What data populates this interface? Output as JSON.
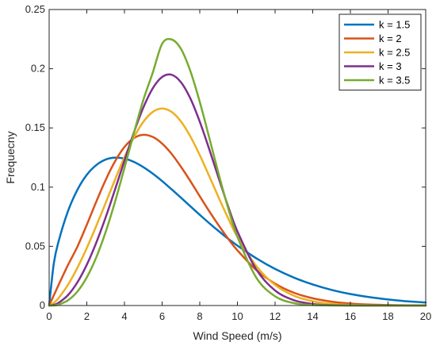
{
  "chart_data": {
    "type": "line",
    "xlabel": "Wind Speed (m/s)",
    "ylabel": "Frequecny",
    "xlim": [
      0,
      20
    ],
    "ylim": [
      0,
      0.25
    ],
    "x_ticks": [
      0,
      2,
      4,
      6,
      8,
      10,
      12,
      14,
      16,
      18,
      20
    ],
    "y_ticks": [
      0,
      0.05,
      0.1,
      0.15,
      0.2,
      0.25
    ],
    "x_tick_labels": [
      "0",
      "2",
      "4",
      "6",
      "8",
      "10",
      "12",
      "14",
      "16",
      "18",
      "20"
    ],
    "y_tick_labels": [
      "0",
      "0.05",
      "0.1",
      "0.15",
      "0.2",
      "0.25"
    ],
    "grid": false,
    "legend_position": "top-right",
    "x": [
      0,
      0.25,
      0.5,
      1,
      1.5,
      2,
      2.5,
      3,
      3.5,
      4,
      4.5,
      5,
      5.5,
      6,
      6.5,
      7,
      7.5,
      8,
      8.5,
      9,
      9.5,
      10,
      11,
      12,
      13,
      14,
      15,
      16,
      17,
      18,
      19,
      20
    ],
    "series": [
      {
        "name": "k = 1.5",
        "color": "#0072BD",
        "values": [
          0,
          0.0358,
          0.0541,
          0.0797,
          0.0977,
          0.1104,
          0.1186,
          0.1233,
          0.1249,
          0.1241,
          0.1213,
          0.1169,
          0.1114,
          0.1051,
          0.0982,
          0.0911,
          0.0838,
          0.0766,
          0.0696,
          0.0629,
          0.0565,
          0.0506,
          0.0399,
          0.0309,
          0.0236,
          0.0178,
          0.0132,
          0.0097,
          0.0071,
          0.0051,
          0.0036,
          0.0026
        ]
      },
      {
        "name": "k = 2",
        "color": "#D95319",
        "values": [
          0,
          0.0087,
          0.0174,
          0.0342,
          0.0497,
          0.0682,
          0.0876,
          0.106,
          0.1218,
          0.1339,
          0.1414,
          0.1442,
          0.1424,
          0.1368,
          0.1282,
          0.1172,
          0.1051,
          0.0923,
          0.0797,
          0.0678,
          0.0566,
          0.0466,
          0.03,
          0.0185,
          0.0108,
          0.0061,
          0.0033,
          0.0017,
          0.0008,
          0.0004,
          0.0002,
          0.0001
        ]
      },
      {
        "name": "k = 2.5",
        "color": "#EDB120",
        "values": [
          0,
          0.0023,
          0.0063,
          0.0175,
          0.0319,
          0.0486,
          0.0671,
          0.0866,
          0.1064,
          0.1253,
          0.142,
          0.1551,
          0.1635,
          0.1664,
          0.1636,
          0.1555,
          0.1428,
          0.127,
          0.1094,
          0.0913,
          0.074,
          0.0581,
          0.0334,
          0.0174,
          0.0083,
          0.0036,
          0.0014,
          0.0005,
          0.0002,
          0.0001,
          0,
          0
        ]
      },
      {
        "name": "k = 3",
        "color": "#7E2F8E",
        "values": [
          0,
          0.0006,
          0.0023,
          0.0088,
          0.0196,
          0.0345,
          0.053,
          0.0744,
          0.098,
          0.1224,
          0.1461,
          0.1671,
          0.1834,
          0.193,
          0.1949,
          0.1886,
          0.1749,
          0.1553,
          0.1322,
          0.1078,
          0.084,
          0.0626,
          0.0305,
          0.0127,
          0.0045,
          0.0013,
          0.0003,
          0.0001,
          0,
          0,
          0,
          0
        ]
      },
      {
        "name": "k = 3.5",
        "color": "#77AC30",
        "values": [
          0,
          0.0001,
          0.0008,
          0.0044,
          0.0118,
          0.0238,
          0.0406,
          0.0621,
          0.0877,
          0.1162,
          0.1456,
          0.1735,
          0.1965,
          0.221,
          0.2247,
          0.2168,
          0.198,
          0.172,
          0.142,
          0.1113,
          0.0827,
          0.058,
          0.0236,
          0.0078,
          0.002,
          0.0004,
          0.0001,
          0,
          0,
          0,
          0,
          0
        ]
      }
    ]
  }
}
